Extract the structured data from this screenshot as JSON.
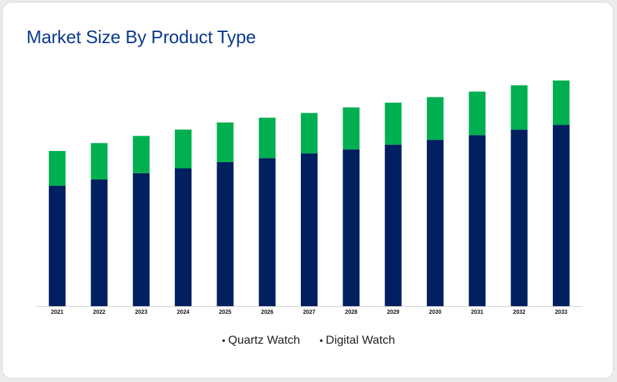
{
  "title": "Market Size By Product Type",
  "chart_data": {
    "type": "bar",
    "stacked": true,
    "title": "Market Size By Product Type",
    "xlabel": "",
    "ylabel": "",
    "categories": [
      "2021",
      "2022",
      "2023",
      "2024",
      "2025",
      "2026",
      "2027",
      "2028",
      "2029",
      "2030",
      "2031",
      "2032",
      "2033"
    ],
    "series": [
      {
        "name": "Quartz Watch",
        "color": "#002060",
        "values": [
          152,
          160,
          168,
          174,
          182,
          187,
          193,
          198,
          204,
          210,
          216,
          223,
          229
        ]
      },
      {
        "name": "Digital Watch",
        "color": "#00b050",
        "values": [
          44,
          46,
          47,
          49,
          50,
          51,
          51,
          53,
          53,
          54,
          55,
          56,
          56
        ]
      }
    ],
    "ylim": [
      0,
      290
    ],
    "grid": false,
    "legend": "bottom-center",
    "yaxis_visible": false
  }
}
